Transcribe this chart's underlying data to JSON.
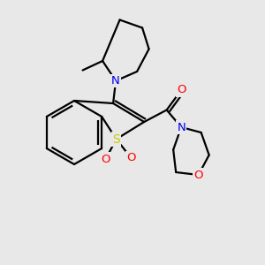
{
  "bg": "#e8e8e8",
  "black": "#000000",
  "blue": "#0000ee",
  "red": "#ff0000",
  "sulfur_yellow": "#cccc00",
  "lw": 1.6,
  "fs": 9.5,
  "xlim": [
    0,
    10
  ],
  "ylim": [
    0,
    10
  ]
}
